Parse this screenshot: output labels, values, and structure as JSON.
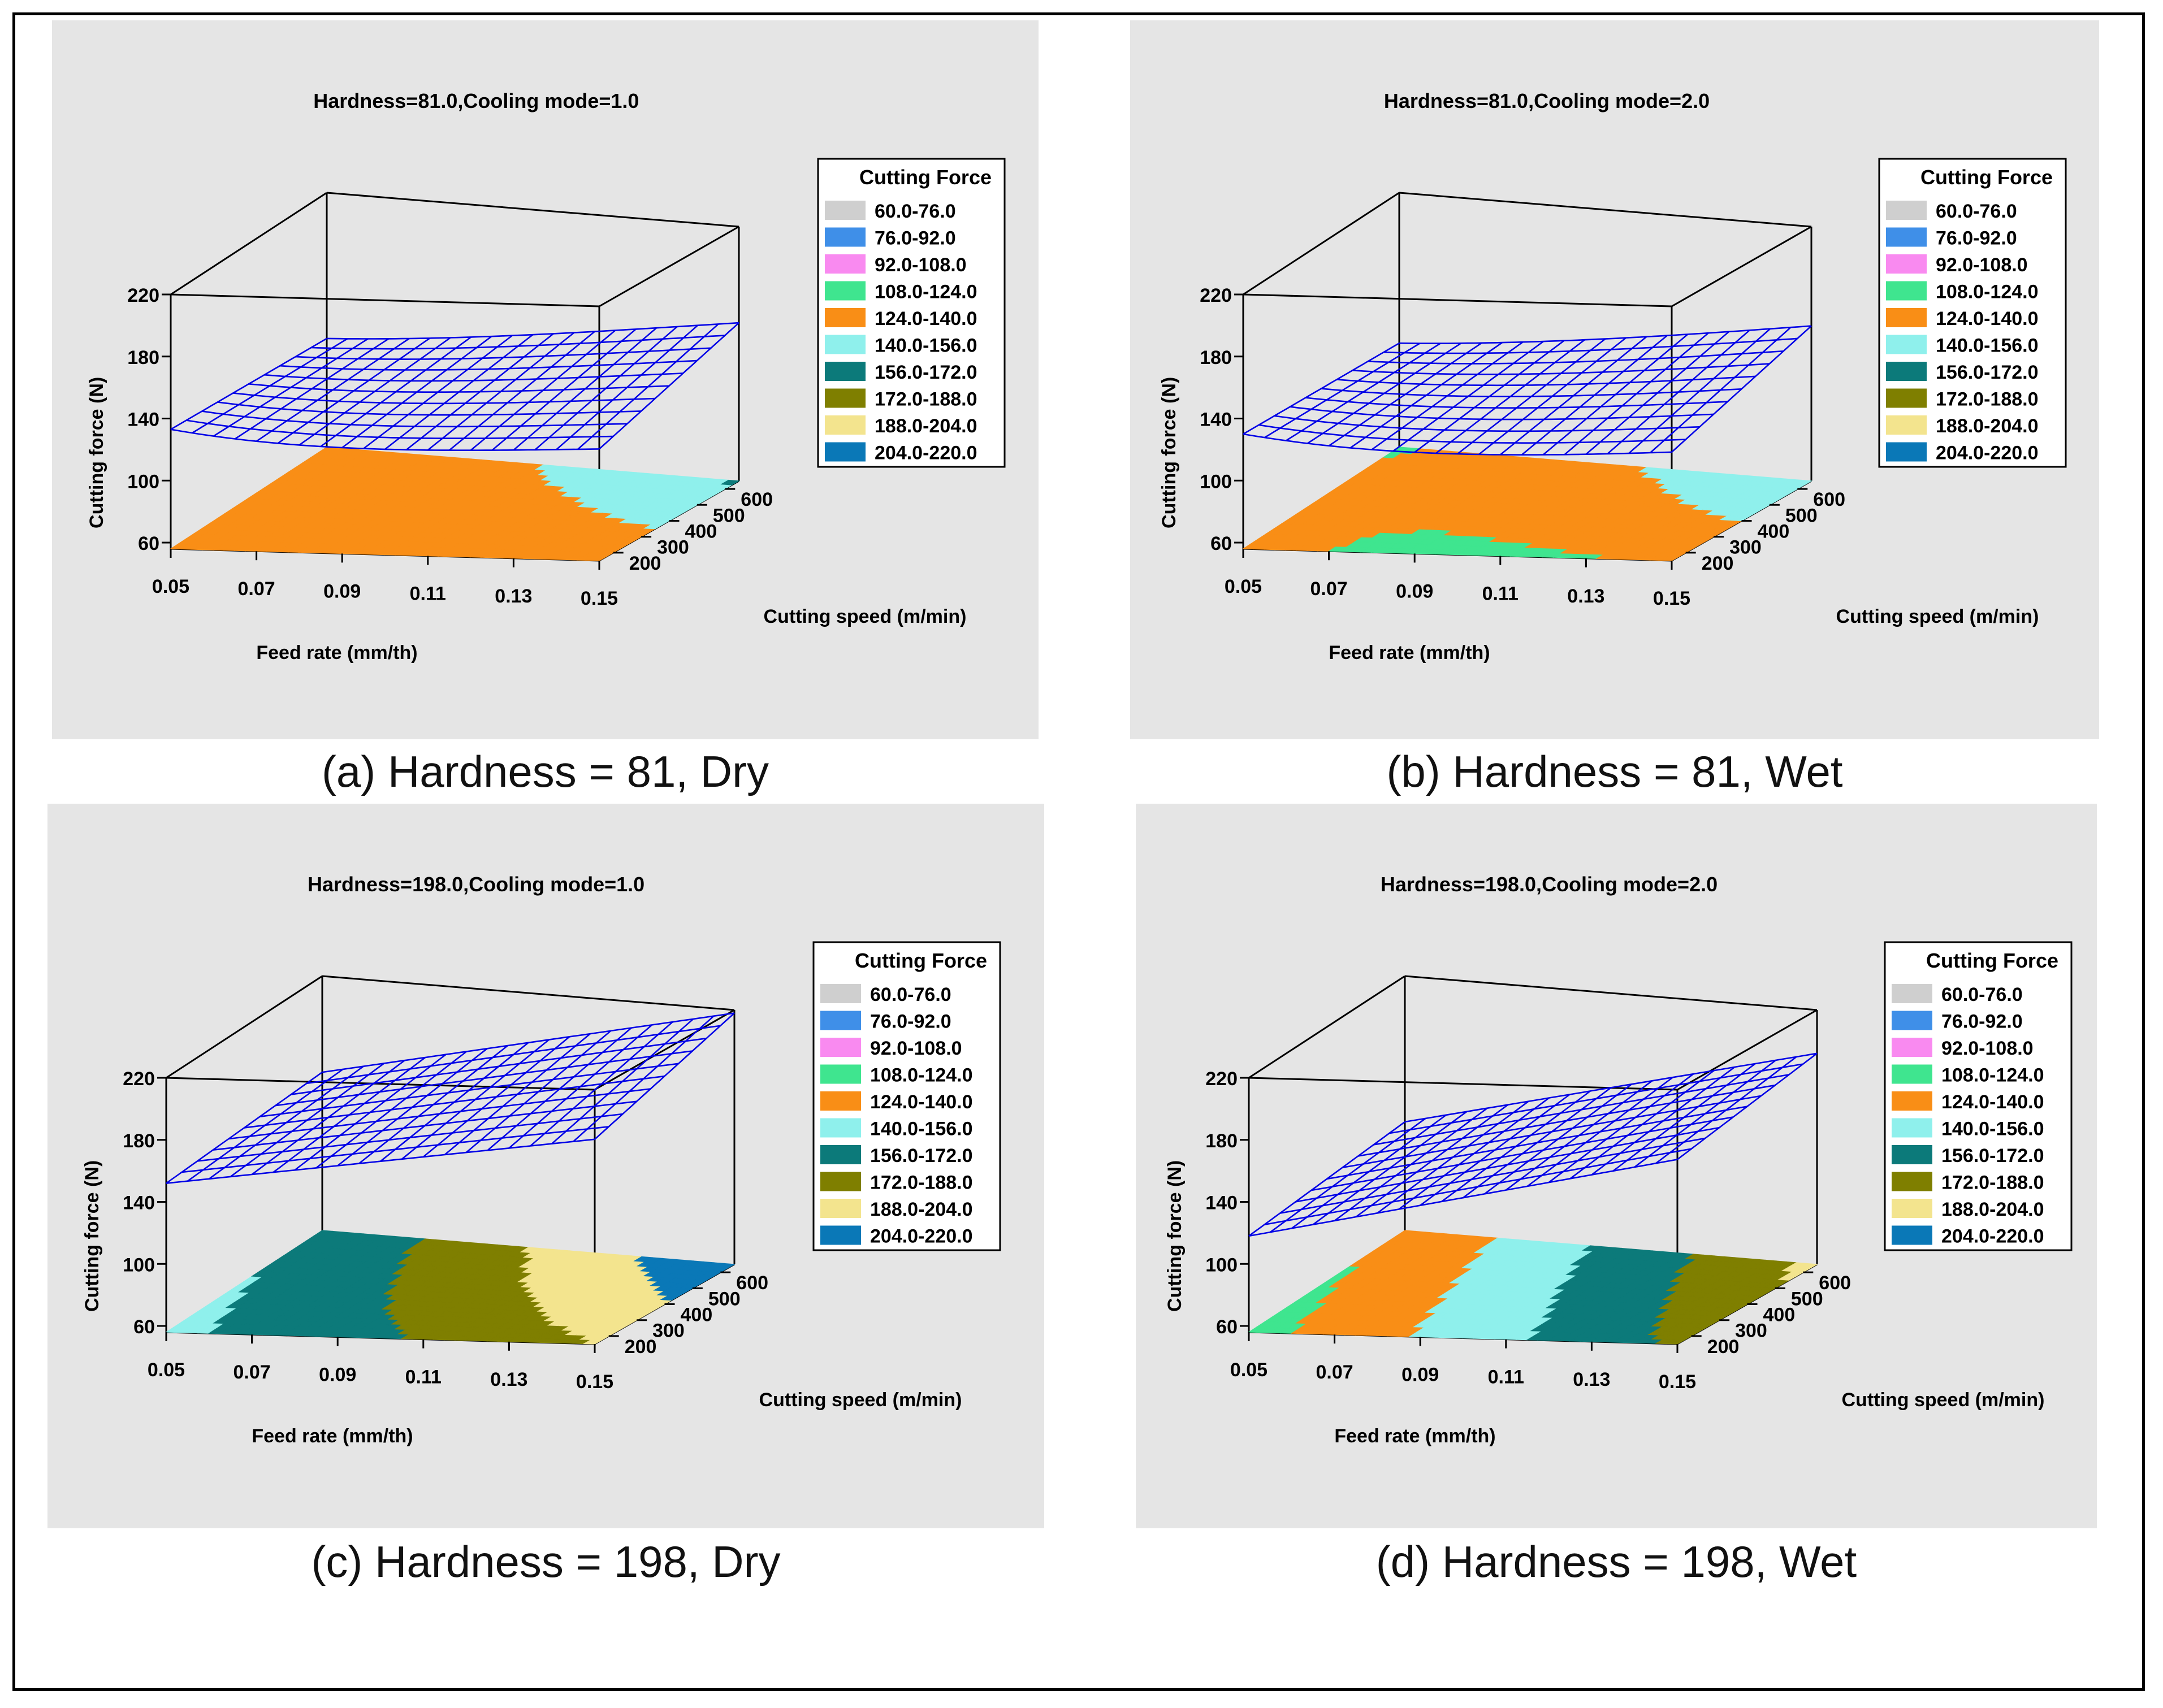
{
  "legend": {
    "title": "Cutting Force",
    "ranges": [
      "60.0-76.0",
      "76.0-92.0",
      "92.0-108.0",
      "108.0-124.0",
      "124.0-140.0",
      "140.0-156.0",
      "156.0-172.0",
      "172.0-188.0",
      "188.0-204.0",
      "204.0-220.0"
    ],
    "colors": [
      "#cfcfcf",
      "#3f8fe8",
      "#f98af0",
      "#3fe58f",
      "#f98e16",
      "#8ff0ec",
      "#0c7a7a",
      "#7f7f00",
      "#f3e48e",
      "#0a78b7"
    ]
  },
  "colors": {
    "background": "#e5e5e5",
    "mesh": "#0000e6",
    "frame": "#000000"
  },
  "chart_data": [
    {
      "type": "surface3d",
      "title": "Hardness=81.0,Cooling mode=1.0",
      "caption": "(a) Hardness = 81, Dry",
      "xlabel": "Feed rate (mm/th)",
      "ylabel": "Cutting speed (m/min)",
      "zlabel": "Cutting force (N)",
      "x_ticks": [
        "0.05",
        "0.07",
        "0.09",
        "0.11",
        "0.13",
        "0.15"
      ],
      "y_ticks": [
        "200",
        "300",
        "400",
        "500",
        "600"
      ],
      "z_ticks": [
        "60",
        "100",
        "140",
        "180",
        "220"
      ],
      "xlim": [
        0.05,
        0.15
      ],
      "ylim": [
        150,
        650
      ],
      "zlim": [
        56,
        220
      ],
      "surface": {
        "z00": 133,
        "z10": 128,
        "z01": 126,
        "z11": 158,
        "min": 124,
        "min_u": 0.5,
        "min_v": 0.0
      }
    },
    {
      "type": "surface3d",
      "title": "Hardness=81.0,Cooling mode=2.0",
      "caption": "(b) Hardness = 81, Wet",
      "xlabel": "Feed rate (mm/th)",
      "ylabel": "Cutting speed (m/min)",
      "zlabel": "Cutting force (N)",
      "x_ticks": [
        "0.05",
        "0.07",
        "0.09",
        "0.11",
        "0.13",
        "0.15"
      ],
      "y_ticks": [
        "200",
        "300",
        "400",
        "500",
        "600"
      ],
      "z_ticks": [
        "60",
        "100",
        "140",
        "180",
        "220"
      ],
      "xlim": [
        0.05,
        0.15
      ],
      "ylim": [
        150,
        650
      ],
      "zlim": [
        56,
        220
      ],
      "surface": {
        "z00": 130,
        "z10": 126,
        "z01": 123,
        "z11": 156,
        "min": 121,
        "min_u": 0.5,
        "min_v": 0.0
      }
    },
    {
      "type": "surface3d",
      "title": "Hardness=198.0,Cooling mode=1.0",
      "caption": "(c) Hardness = 198, Dry",
      "xlabel": "Feed rate (mm/th)",
      "ylabel": "Cutting speed (m/min)",
      "zlabel": "Cutting force (N)",
      "x_ticks": [
        "0.05",
        "0.07",
        "0.09",
        "0.11",
        "0.13",
        "0.15"
      ],
      "y_ticks": [
        "200",
        "300",
        "400",
        "500",
        "600"
      ],
      "z_ticks": [
        "60",
        "100",
        "140",
        "180",
        "220"
      ],
      "xlim": [
        0.05,
        0.15
      ],
      "ylim": [
        150,
        650
      ],
      "zlim": [
        56,
        220
      ],
      "surface": {
        "z00": 152,
        "z10": 188,
        "z01": 158,
        "z11": 218,
        "min": 152,
        "min_u": 0.0,
        "min_v": 0.0
      }
    },
    {
      "type": "surface3d",
      "title": "Hardness=198.0,Cooling mode=2.0",
      "caption": "(d) Hardness = 198, Wet",
      "xlabel": "Feed rate (mm/th)",
      "ylabel": "Cutting speed (m/min)",
      "zlabel": "Cutting force (N)",
      "x_ticks": [
        "0.05",
        "0.07",
        "0.09",
        "0.11",
        "0.13",
        "0.15"
      ],
      "y_ticks": [
        "200",
        "300",
        "400",
        "500",
        "600"
      ],
      "z_ticks": [
        "60",
        "100",
        "140",
        "180",
        "220"
      ],
      "xlim": [
        0.05,
        0.15
      ],
      "ylim": [
        150,
        650
      ],
      "zlim": [
        56,
        220
      ],
      "surface": {
        "z00": 118,
        "z10": 175,
        "z01": 126,
        "z11": 192,
        "min": 118,
        "min_u": 0.0,
        "min_v": 0.0
      }
    }
  ]
}
